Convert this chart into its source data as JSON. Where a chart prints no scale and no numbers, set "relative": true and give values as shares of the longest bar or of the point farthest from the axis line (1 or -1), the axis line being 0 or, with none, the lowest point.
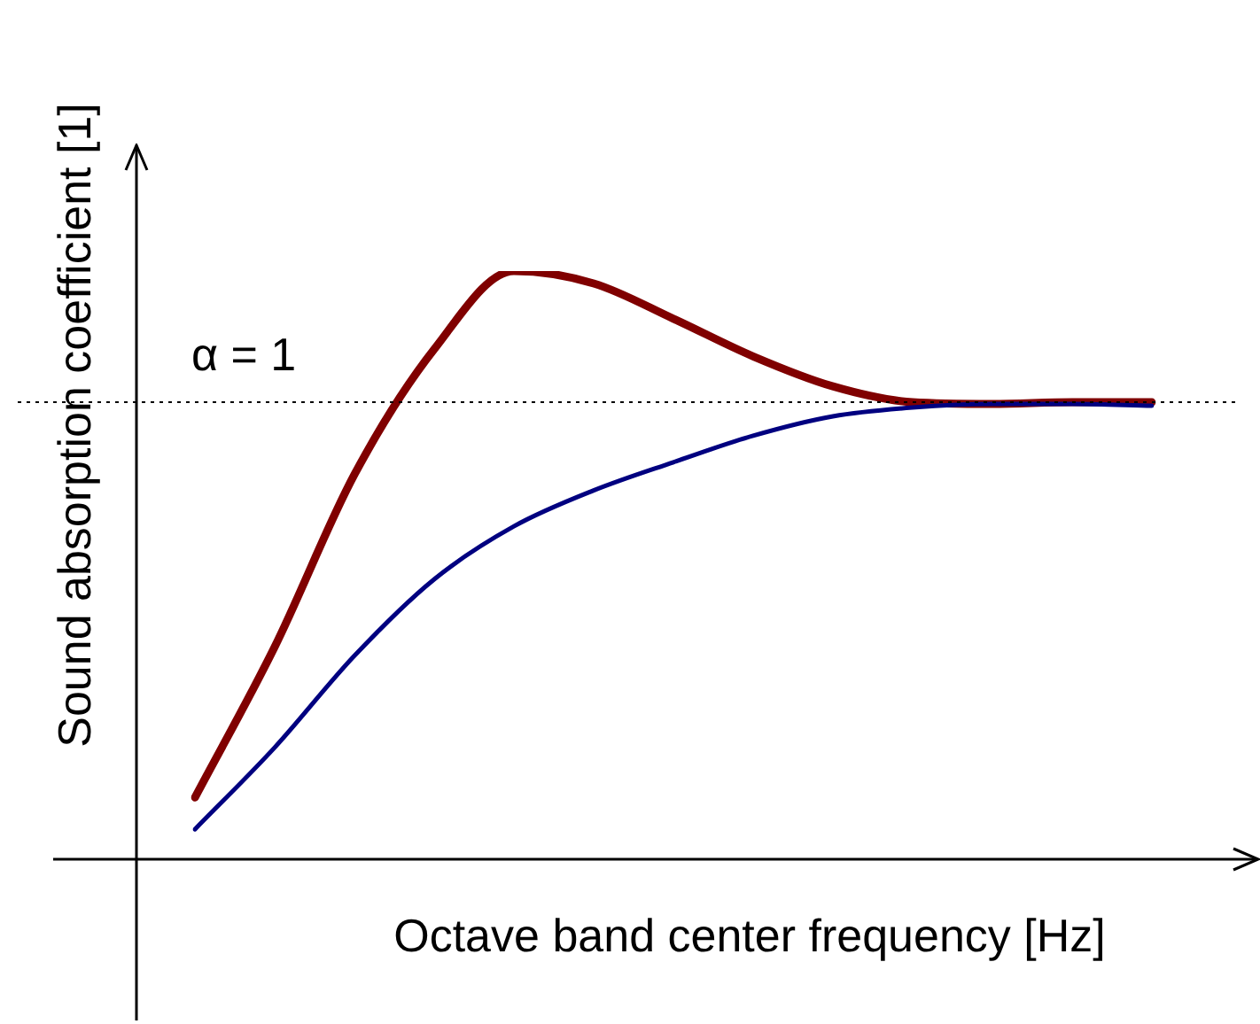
{
  "chart_data": {
    "type": "line",
    "relative": true,
    "xlabel": "Octave band center frequency [Hz]",
    "ylabel": "Sound absorption coefficient [1]",
    "categories": [
      null,
      null,
      null,
      null,
      null,
      null,
      null,
      null,
      null,
      null,
      null,
      null,
      null
    ],
    "series": [
      {
        "color": "#800000",
        "values": [
          0.105,
          0.361,
          0.654,
          0.867,
          1,
          0.979,
          0.919,
          0.855,
          0.804,
          0.777,
          0.774,
          0.777,
          0.777
        ]
      },
      {
        "color": "#000080",
        "values": [
          0.051,
          0.19,
          0.346,
          0.476,
          0.566,
          0.627,
          0.675,
          0.72,
          0.753,
          0.768,
          0.774,
          0.774,
          0.771
        ]
      }
    ],
    "ref_lines": [
      {
        "axis": "y",
        "value": 0.777,
        "label": "α = 1",
        "line_style": "dotted",
        "color": "#000000"
      }
    ]
  }
}
